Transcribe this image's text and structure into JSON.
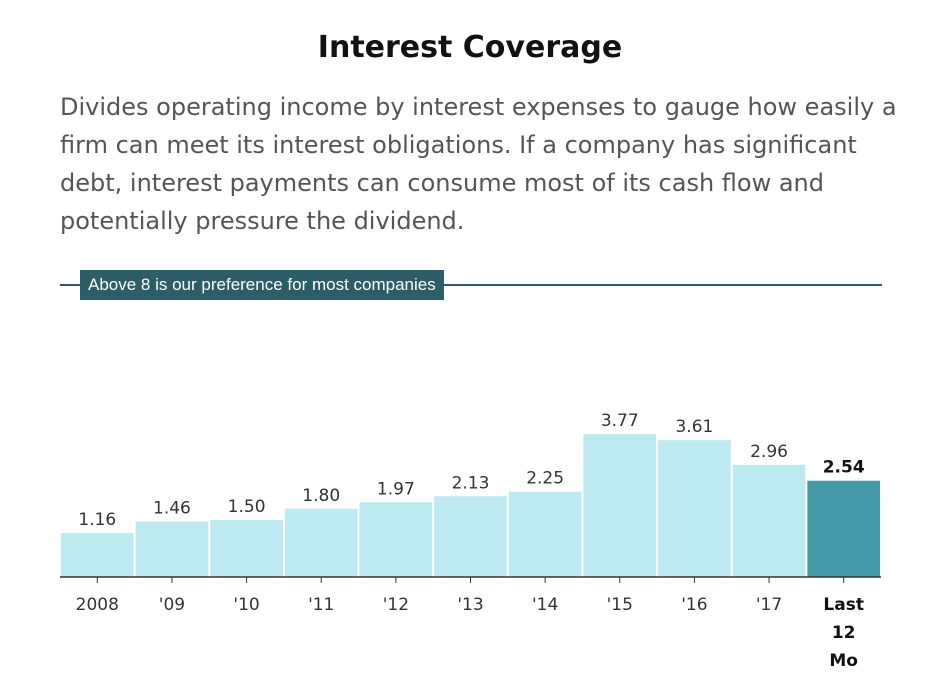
{
  "header": {
    "title": "Interest Coverage",
    "description": "Divides operating income by interest expenses to gauge how easily a firm can meet its interest obligations. If a company has significant debt, interest payments can consume most of its cash flow and potentially pressure the dividend."
  },
  "threshold": {
    "label": "Above 8 is our preference for most companies",
    "value": 8
  },
  "colors": {
    "bar": "#bde9f0",
    "bar_last": "#4499a9",
    "threshold": "#2b5e66",
    "axis": "#333333"
  },
  "chart_data": {
    "type": "bar",
    "categories": [
      "2008",
      "'09",
      "'10",
      "'11",
      "'12",
      "'13",
      "'14",
      "'15",
      "'16",
      "'17",
      "Last 12 Mo"
    ],
    "values": [
      1.16,
      1.46,
      1.5,
      1.8,
      1.97,
      2.13,
      2.25,
      3.77,
      3.61,
      2.96,
      2.54
    ],
    "value_labels": [
      "1.16",
      "1.46",
      "1.50",
      "1.80",
      "1.97",
      "2.13",
      "2.25",
      "3.77",
      "3.61",
      "2.96",
      "2.54"
    ],
    "title": "Interest Coverage",
    "xlabel": "",
    "ylabel": "",
    "grid": false,
    "highlight_last": true
  }
}
